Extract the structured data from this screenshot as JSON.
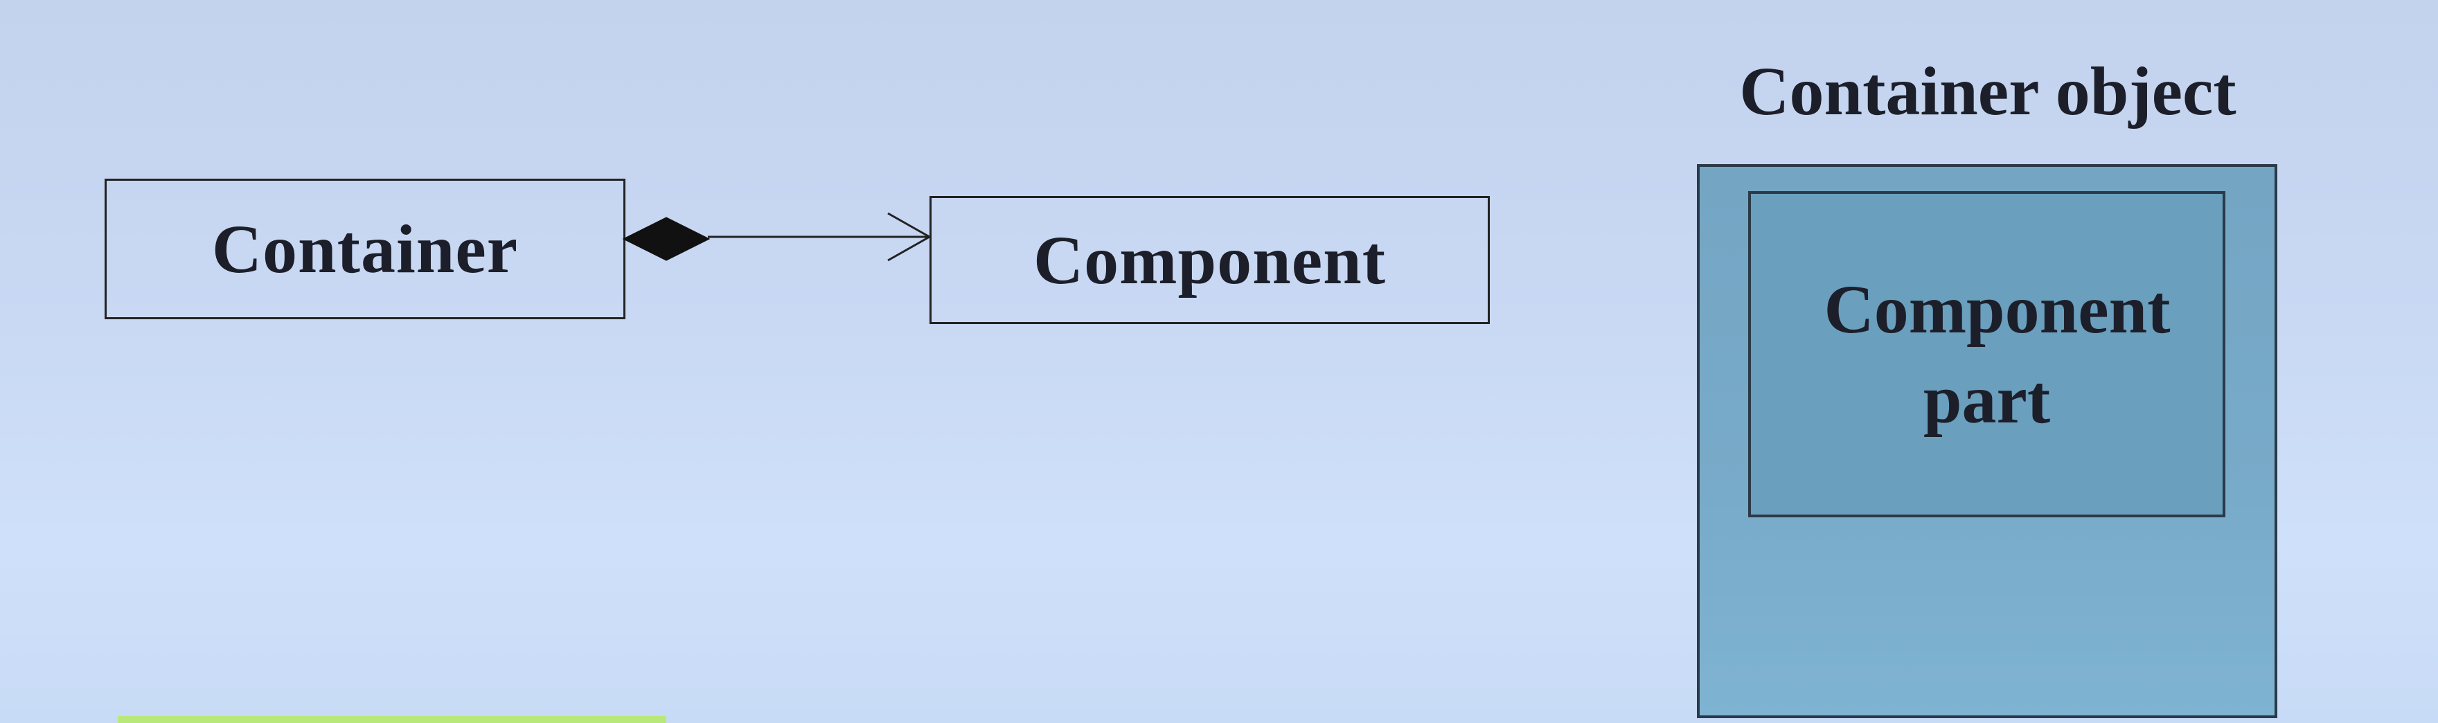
{
  "diagram": {
    "container_label": "Container",
    "component_label": "Component",
    "relationship": "composition",
    "container_object_title": "Container object",
    "component_part_label": "Component part"
  },
  "colors": {
    "background": "#c9d9f4",
    "outer_object_fill": "#78abc9",
    "inner_part_fill": "#6a9fbe",
    "line": "#222222",
    "highlight_strip": "#b9e87a"
  }
}
